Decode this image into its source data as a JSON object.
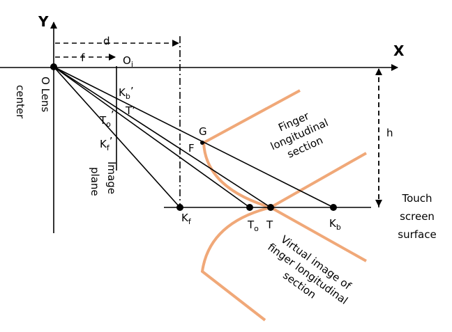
{
  "axes": {
    "x": "X",
    "y": "Y"
  },
  "origin": {
    "label": "O",
    "caption": [
      "Lens",
      "center"
    ]
  },
  "image_plane": {
    "caption": [
      "Image",
      "plane"
    ],
    "origin_label": {
      "main": "O",
      "sub": "i"
    }
  },
  "dimensions": {
    "d": "d",
    "f": "f",
    "h": "h"
  },
  "image_points": [
    {
      "main": "K",
      "sub": "b",
      "prime": "’"
    },
    {
      "main": "T",
      "prime": "’"
    },
    {
      "main": "T",
      "sub": "o",
      "prime": "’"
    },
    {
      "main": "K",
      "sub": "f",
      "prime": "’"
    }
  ],
  "surface_points": [
    {
      "main": "K",
      "sub": "f"
    },
    {
      "main": "T",
      "sub": "o"
    },
    {
      "main": "T"
    },
    {
      "main": "K",
      "sub": "b"
    }
  ],
  "finger_points": {
    "g": "G",
    "f": "F"
  },
  "finger_label": [
    "Finger",
    "longitudinal",
    "section"
  ],
  "virtual_label": [
    "Virtual image of",
    "finger longitudinal",
    "section"
  ],
  "surface_label": [
    "Touch",
    "screen",
    "surface"
  ]
}
